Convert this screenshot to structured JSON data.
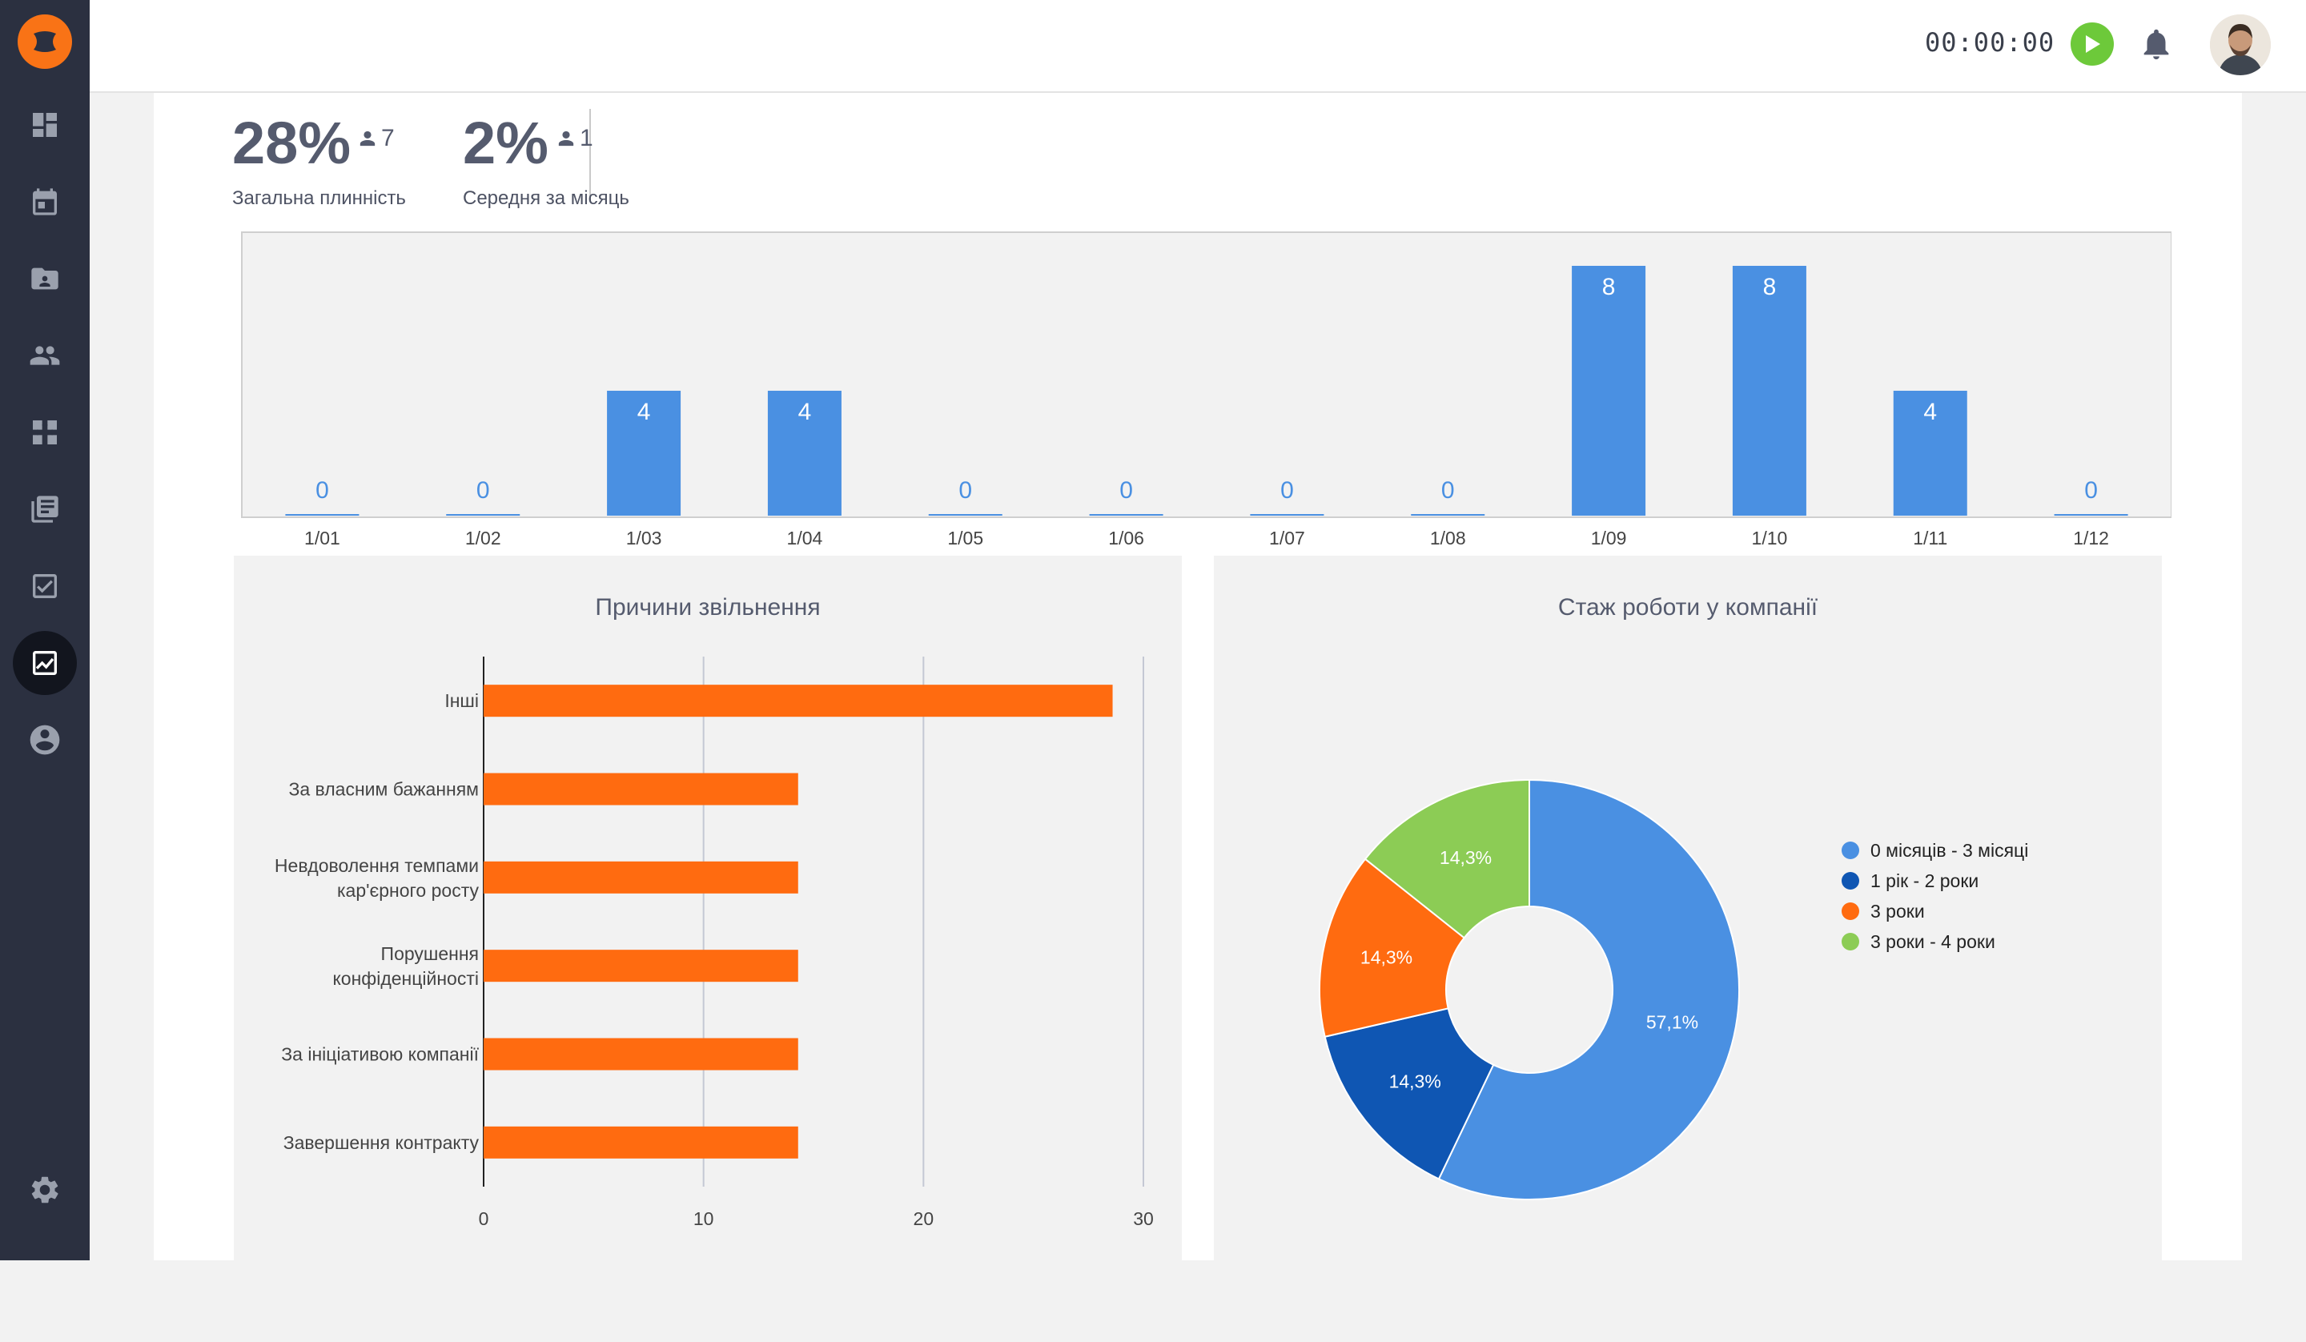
{
  "header": {
    "timer": "00:00:00"
  },
  "icons": {
    "sidebar": [
      "dashboard-icon",
      "calendar-icon",
      "folder-account-icon",
      "people-icon",
      "workflow-icon",
      "library-books-icon",
      "checkbox-icon",
      "analytics-icon",
      "account-circle-icon",
      "settings-icon"
    ]
  },
  "stats": {
    "overall": {
      "value": "28%",
      "count": "7",
      "label": "Загальна плинність"
    },
    "monthly": {
      "value": "2%",
      "count": "1",
      "label": "Середня за місяць"
    }
  },
  "charts": {
    "reasons_title": "Причини звільнення",
    "tenure_title": "Стаж роботи у компанії"
  },
  "colors": {
    "accent": "#f97316",
    "blue": "#4a90e2",
    "dark_blue": "#0f56b3",
    "orange": "#ff6b10",
    "green": "#8ccc55",
    "sidebar": "#2b3040"
  },
  "chart_data": [
    {
      "type": "bar",
      "categories": [
        "1/01",
        "1/02",
        "1/03",
        "1/04",
        "1/05",
        "1/06",
        "1/07",
        "1/08",
        "1/09",
        "1/10",
        "1/11",
        "1/12"
      ],
      "values": [
        0,
        0,
        4,
        4,
        0,
        0,
        0,
        0,
        8,
        8,
        4,
        0
      ],
      "ylim": [
        0,
        8
      ],
      "grid": false,
      "data_labels": true
    },
    {
      "type": "bar",
      "orientation": "horizontal",
      "title": "Причини звільнення",
      "categories": [
        "Інші",
        "За власним бажанням",
        "Невдоволення темпами кар'єрного росту",
        "Порушення конфіденційності",
        "За ініціативою компанії",
        "Завершення контракту"
      ],
      "category_lines": [
        [
          "Інші"
        ],
        [
          "За власним бажанням"
        ],
        [
          "Невдоволення темпами",
          "кар'єрного росту"
        ],
        [
          "Порушення",
          "конфіденційності"
        ],
        [
          "За ініціативою компанії"
        ],
        [
          "Завершення контракту"
        ]
      ],
      "values": [
        28.6,
        14.3,
        14.3,
        14.3,
        14.3,
        14.3
      ],
      "xlim": [
        0,
        30
      ],
      "xticks": [
        "0",
        "10",
        "20",
        "30"
      ],
      "grid": true
    },
    {
      "type": "pie",
      "donut": true,
      "title": "Стаж роботи у компанії",
      "labels": [
        "0 місяців - 3 місяці",
        "1 рік - 2 роки",
        "3 роки",
        "3 роки - 4 роки"
      ],
      "values": [
        57.1,
        14.3,
        14.3,
        14.3
      ],
      "value_labels": [
        "57,1%",
        "14,3%",
        "14,3%",
        "14,3%"
      ],
      "colors": [
        "#4a90e2",
        "#0f56b3",
        "#ff6b10",
        "#8ccc55"
      ],
      "legend": "right"
    }
  ]
}
